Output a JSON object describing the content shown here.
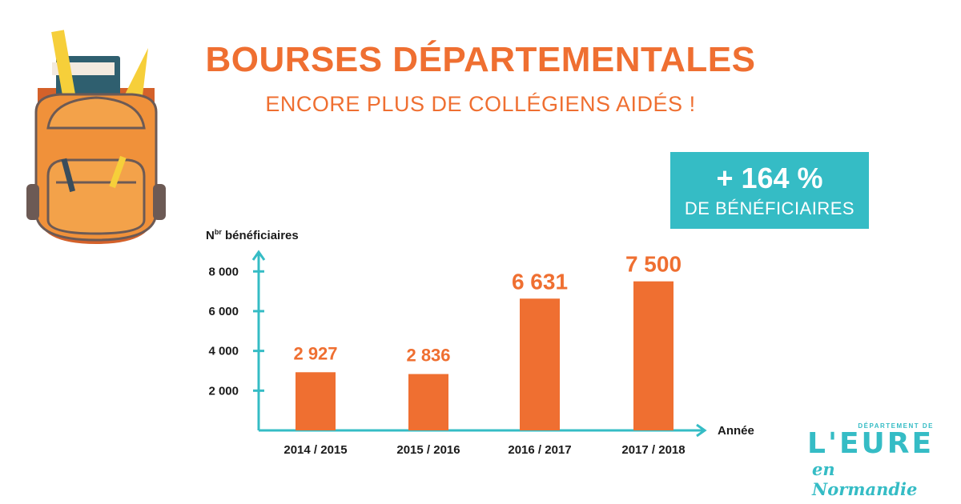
{
  "header": {
    "title": "BOURSES DÉPARTEMENTALES",
    "subtitle": "ENCORE PLUS DE COLLÉGIENS AIDÉS !"
  },
  "badge": {
    "value": "+ 164 %",
    "label": "DE BÉNÉFICIAIRES"
  },
  "logo": {
    "top": "DÉPARTEMENT DE",
    "main": "L'EURE",
    "sub": "en Normandie"
  },
  "illustration": {
    "icon": "backpack-icon"
  },
  "colors": {
    "accent": "#ef6f31",
    "teal": "#35bcc5",
    "text": "#1a1a1a"
  },
  "chart_data": {
    "type": "bar",
    "ylabel_main": "N",
    "ylabel_sup": "br",
    "ylabel_rest": " bénéficiaires",
    "xlabel": "Année",
    "categories": [
      "2014 / 2015",
      "2015 / 2016",
      "2016 / 2017",
      "2017 / 2018"
    ],
    "values": [
      2927,
      2836,
      6631,
      7500
    ],
    "value_labels": [
      "2 927",
      "2 836",
      "6 631",
      "7 500"
    ],
    "yticks": [
      2000,
      4000,
      6000,
      8000
    ],
    "ytick_labels": [
      "2 000",
      "4 000",
      "6 000",
      "8 000"
    ],
    "ylim": [
      0,
      9500
    ]
  }
}
